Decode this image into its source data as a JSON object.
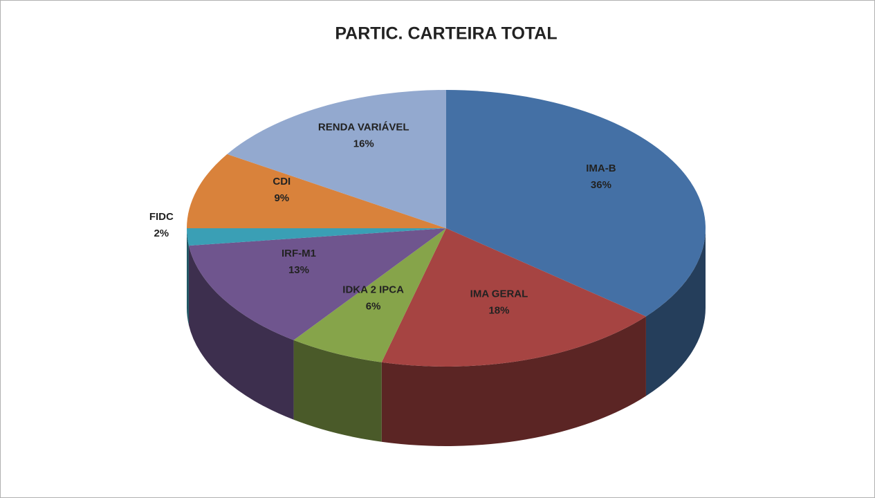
{
  "chart_data": {
    "type": "pie3d",
    "title": "PARTIC. CARTEIRA TOTAL",
    "categories": [
      "IMA-B",
      "IMA GERAL",
      "IDKA 2 IPCA",
      "IRF-M1",
      "FIDC",
      "CDI",
      "RENDA VARIÁVEL"
    ],
    "values": [
      36,
      18,
      6,
      13,
      2,
      9,
      16
    ],
    "value_labels": [
      "36%",
      "18%",
      "6%",
      "13%",
      "2%",
      "9%",
      "16%"
    ],
    "colors": [
      "#4470a5",
      "#a64442",
      "#86a44a",
      "#6f558e",
      "#3a9fb5",
      "#d9823b",
      "#93a9cf"
    ]
  }
}
